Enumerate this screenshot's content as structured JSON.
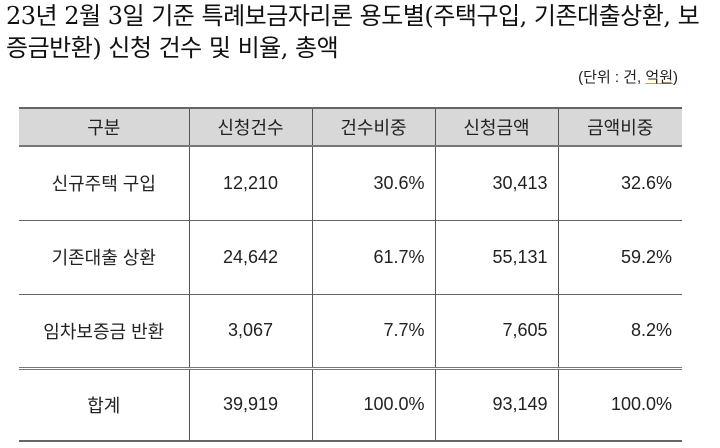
{
  "title": {
    "line1": "23년 2월 3일 기준 특례보금자리론 용도별(주택구입, 기존대출상환, 보",
    "line2": "증금반환) 신청 건수 및 비율, 총액"
  },
  "unit": {
    "prefix": "(단위 : 건, ",
    "underlined": "억원",
    "suffix": ")"
  },
  "table": {
    "headers": [
      "구분",
      "신청건수",
      "건수비중",
      "신청금액",
      "금액비중"
    ],
    "rows": [
      [
        "신규주택 구입",
        "12,210",
        "30.6%",
        "30,413",
        "32.6%"
      ],
      [
        "기존대출 상환",
        "24,642",
        "61.7%",
        "55,131",
        "59.2%"
      ],
      [
        "임차보증금 반환",
        "3,067",
        "7.7%",
        "7,605",
        "8.2%"
      ]
    ],
    "total": [
      "합계",
      "39,919",
      "100.0%",
      "93,149",
      "100.0%"
    ]
  },
  "colors": {
    "header_bg": "#d8d8d8"
  }
}
